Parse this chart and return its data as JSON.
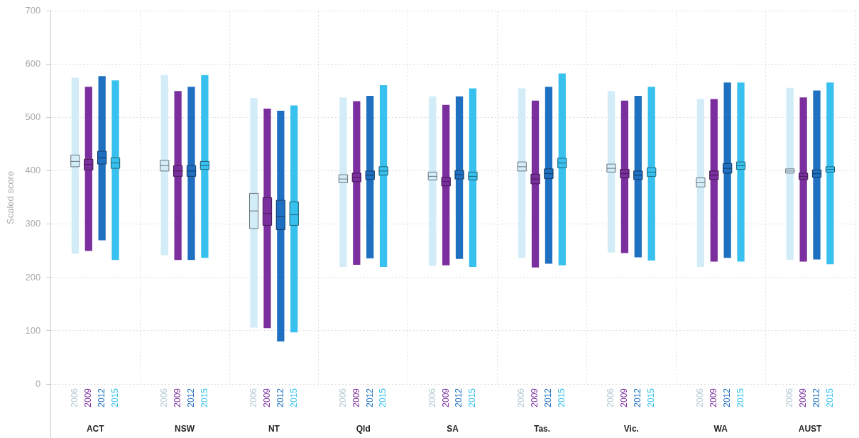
{
  "chart_data": {
    "type": "box",
    "ylabel": "Scaled score",
    "categories": [
      "ACT",
      "NSW",
      "NT",
      "Qld",
      "SA",
      "Tas.",
      "Vic.",
      "WA",
      "AUST"
    ],
    "ylim": [
      0,
      700
    ],
    "yticks": [
      0,
      100,
      200,
      300,
      400,
      500,
      600,
      700
    ],
    "grid": true,
    "series": [
      {
        "name": "2006",
        "color": "#d2ecf8",
        "boxes": [
          {
            "low": 245,
            "q1": 408,
            "median": 418,
            "q3": 430,
            "high": 575
          },
          {
            "low": 242,
            "q1": 400,
            "median": 410,
            "q3": 420,
            "high": 580
          },
          {
            "low": 106,
            "q1": 292,
            "median": 325,
            "q3": 358,
            "high": 537
          },
          {
            "low": 220,
            "q1": 378,
            "median": 385,
            "q3": 393,
            "high": 538
          },
          {
            "low": 222,
            "q1": 383,
            "median": 390,
            "q3": 398,
            "high": 540
          },
          {
            "low": 237,
            "q1": 400,
            "median": 408,
            "q3": 417,
            "high": 555
          },
          {
            "low": 247,
            "q1": 398,
            "median": 405,
            "q3": 413,
            "high": 550
          },
          {
            "low": 220,
            "q1": 370,
            "median": 378,
            "q3": 387,
            "high": 535
          },
          {
            "low": 233,
            "q1": 396,
            "median": 400,
            "q3": 404,
            "high": 556
          }
        ]
      },
      {
        "name": "2009",
        "color": "#7b2f9e",
        "boxes": [
          {
            "low": 250,
            "q1": 402,
            "median": 412,
            "q3": 422,
            "high": 558
          },
          {
            "low": 233,
            "q1": 390,
            "median": 400,
            "q3": 410,
            "high": 550
          },
          {
            "low": 105,
            "q1": 298,
            "median": 320,
            "q3": 350,
            "high": 517
          },
          {
            "low": 224,
            "q1": 380,
            "median": 388,
            "q3": 396,
            "high": 531
          },
          {
            "low": 223,
            "q1": 372,
            "median": 380,
            "q3": 388,
            "high": 524
          },
          {
            "low": 219,
            "q1": 376,
            "median": 385,
            "q3": 394,
            "high": 532
          },
          {
            "low": 246,
            "q1": 387,
            "median": 395,
            "q3": 403,
            "high": 532
          },
          {
            "low": 230,
            "q1": 384,
            "median": 392,
            "q3": 400,
            "high": 535
          },
          {
            "low": 230,
            "q1": 384,
            "median": 390,
            "q3": 396,
            "high": 538
          }
        ]
      },
      {
        "name": "2012",
        "color": "#1f70c1",
        "boxes": [
          {
            "low": 270,
            "q1": 413,
            "median": 425,
            "q3": 437,
            "high": 578
          },
          {
            "low": 233,
            "q1": 390,
            "median": 400,
            "q3": 410,
            "high": 558
          },
          {
            "low": 80,
            "q1": 290,
            "median": 315,
            "q3": 345,
            "high": 513
          },
          {
            "low": 236,
            "q1": 384,
            "median": 392,
            "q3": 400,
            "high": 541
          },
          {
            "low": 235,
            "q1": 385,
            "median": 393,
            "q3": 401,
            "high": 540
          },
          {
            "low": 226,
            "q1": 386,
            "median": 395,
            "q3": 404,
            "high": 558
          },
          {
            "low": 238,
            "q1": 384,
            "median": 392,
            "q3": 400,
            "high": 541
          },
          {
            "low": 237,
            "q1": 396,
            "median": 405,
            "q3": 414,
            "high": 566
          },
          {
            "low": 234,
            "q1": 388,
            "median": 395,
            "q3": 402,
            "high": 551
          }
        ]
      },
      {
        "name": "2015",
        "color": "#38c1ee",
        "boxes": [
          {
            "low": 233,
            "q1": 405,
            "median": 415,
            "q3": 425,
            "high": 570
          },
          {
            "low": 237,
            "q1": 403,
            "median": 410,
            "q3": 418,
            "high": 580
          },
          {
            "low": 97,
            "q1": 298,
            "median": 318,
            "q3": 342,
            "high": 523
          },
          {
            "low": 220,
            "q1": 392,
            "median": 400,
            "q3": 408,
            "high": 561
          },
          {
            "low": 220,
            "q1": 383,
            "median": 390,
            "q3": 398,
            "high": 555
          },
          {
            "low": 223,
            "q1": 406,
            "median": 415,
            "q3": 424,
            "high": 583
          },
          {
            "low": 232,
            "q1": 390,
            "median": 398,
            "q3": 406,
            "high": 558
          },
          {
            "low": 230,
            "q1": 403,
            "median": 410,
            "q3": 417,
            "high": 566
          },
          {
            "low": 225,
            "q1": 398,
            "median": 403,
            "q3": 408,
            "high": 566
          }
        ]
      }
    ]
  }
}
